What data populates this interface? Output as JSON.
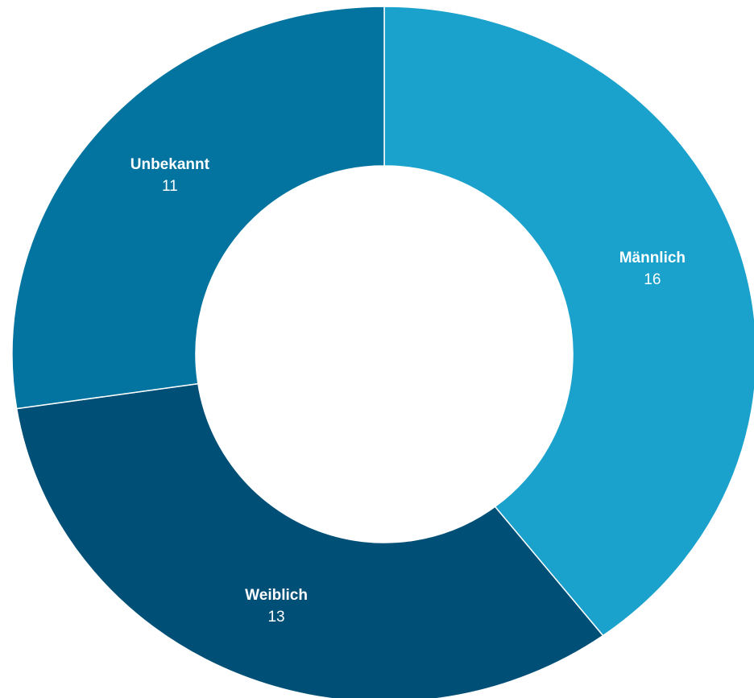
{
  "chart_data": {
    "type": "donut",
    "categories": [
      "Männlich",
      "Weiblich",
      "Unbekannt"
    ],
    "values": [
      16,
      13,
      11
    ],
    "colors": [
      "#1aa1cc",
      "#004f76",
      "#03749f"
    ]
  }
}
